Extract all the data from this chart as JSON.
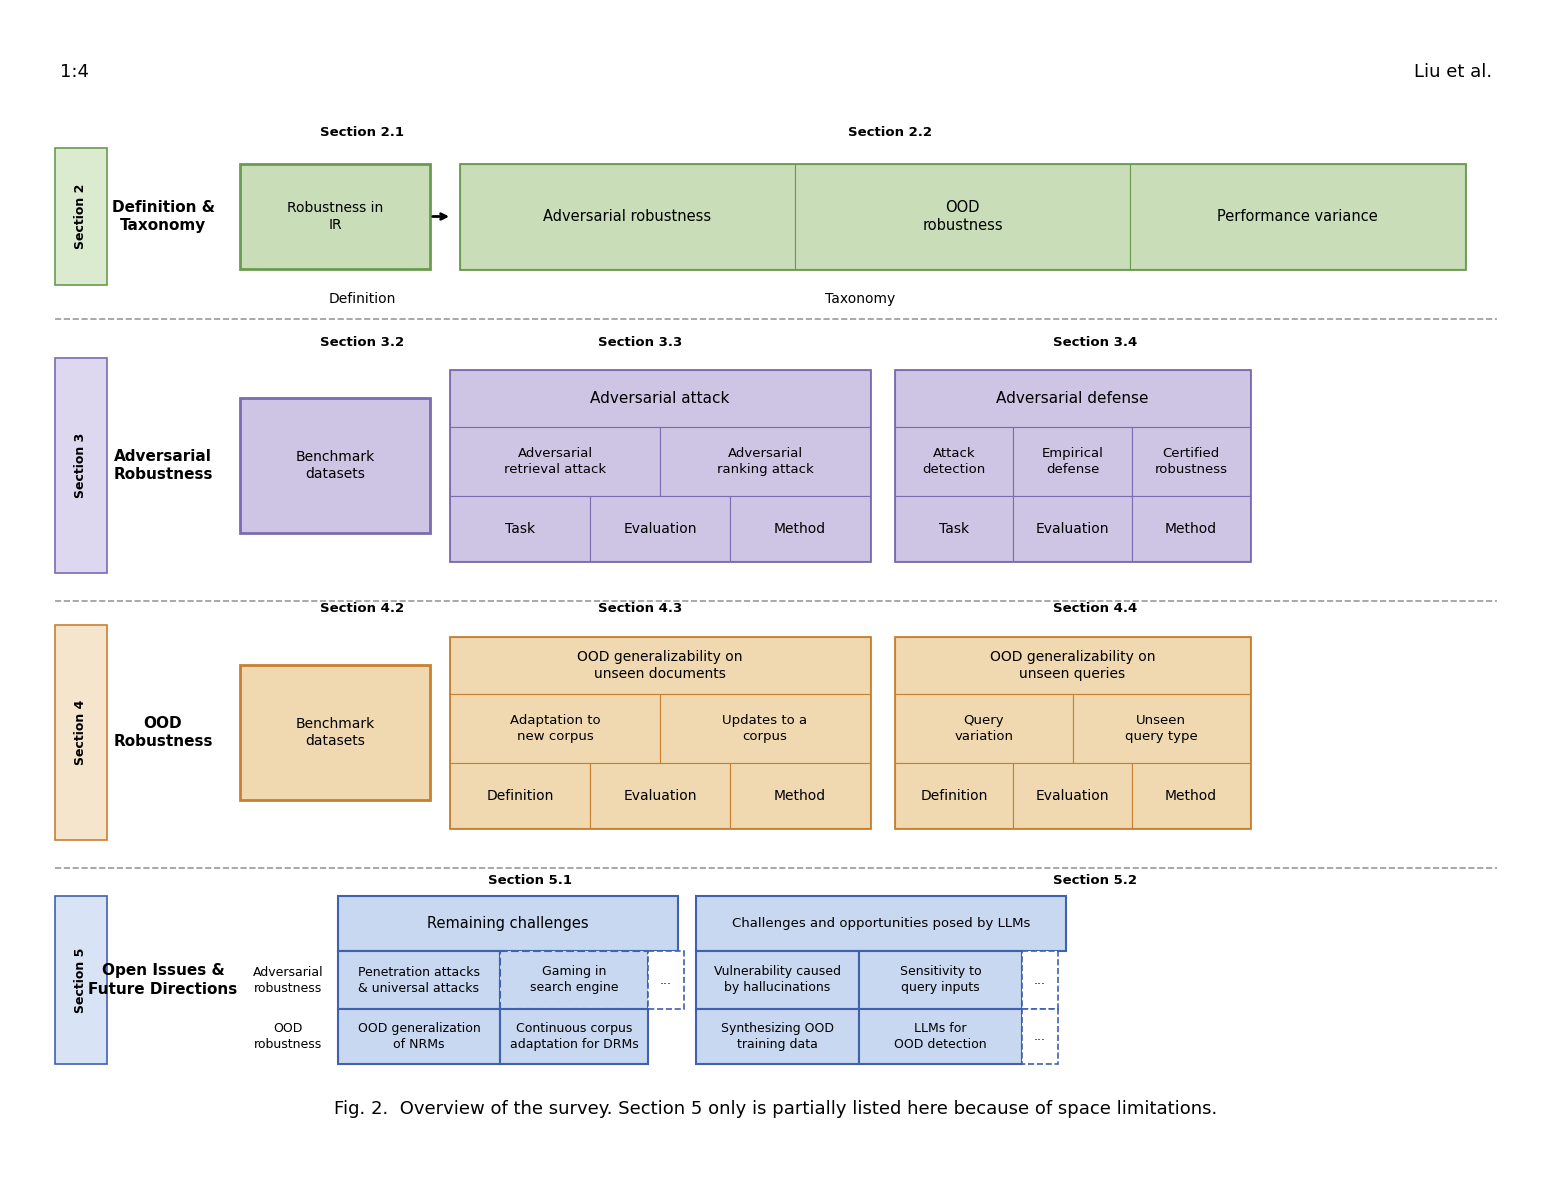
{
  "header_left": "1:4",
  "header_right": "Liu et al.",
  "caption_part1": "Fig. 2.  Overview of the survey. Section ",
  "caption_5": "5",
  "caption_part2": " only is partially listed here because of space limitations.",
  "colors": {
    "green_fill": "#c8ddb8",
    "green_border": "#6a9a50",
    "green_side": "#daebd0",
    "purple_fill": "#cec5e5",
    "purple_border": "#7b6bb0",
    "purple_side": "#ddd8f0",
    "orange_fill": "#f0d9b0",
    "orange_border": "#c88030",
    "orange_side": "#f5e5cc",
    "blue_fill": "#c8d8f0",
    "blue_border": "#4060b0",
    "blue_side": "#d8e4f5",
    "white": "#ffffff",
    "dash_color": "#999999"
  }
}
